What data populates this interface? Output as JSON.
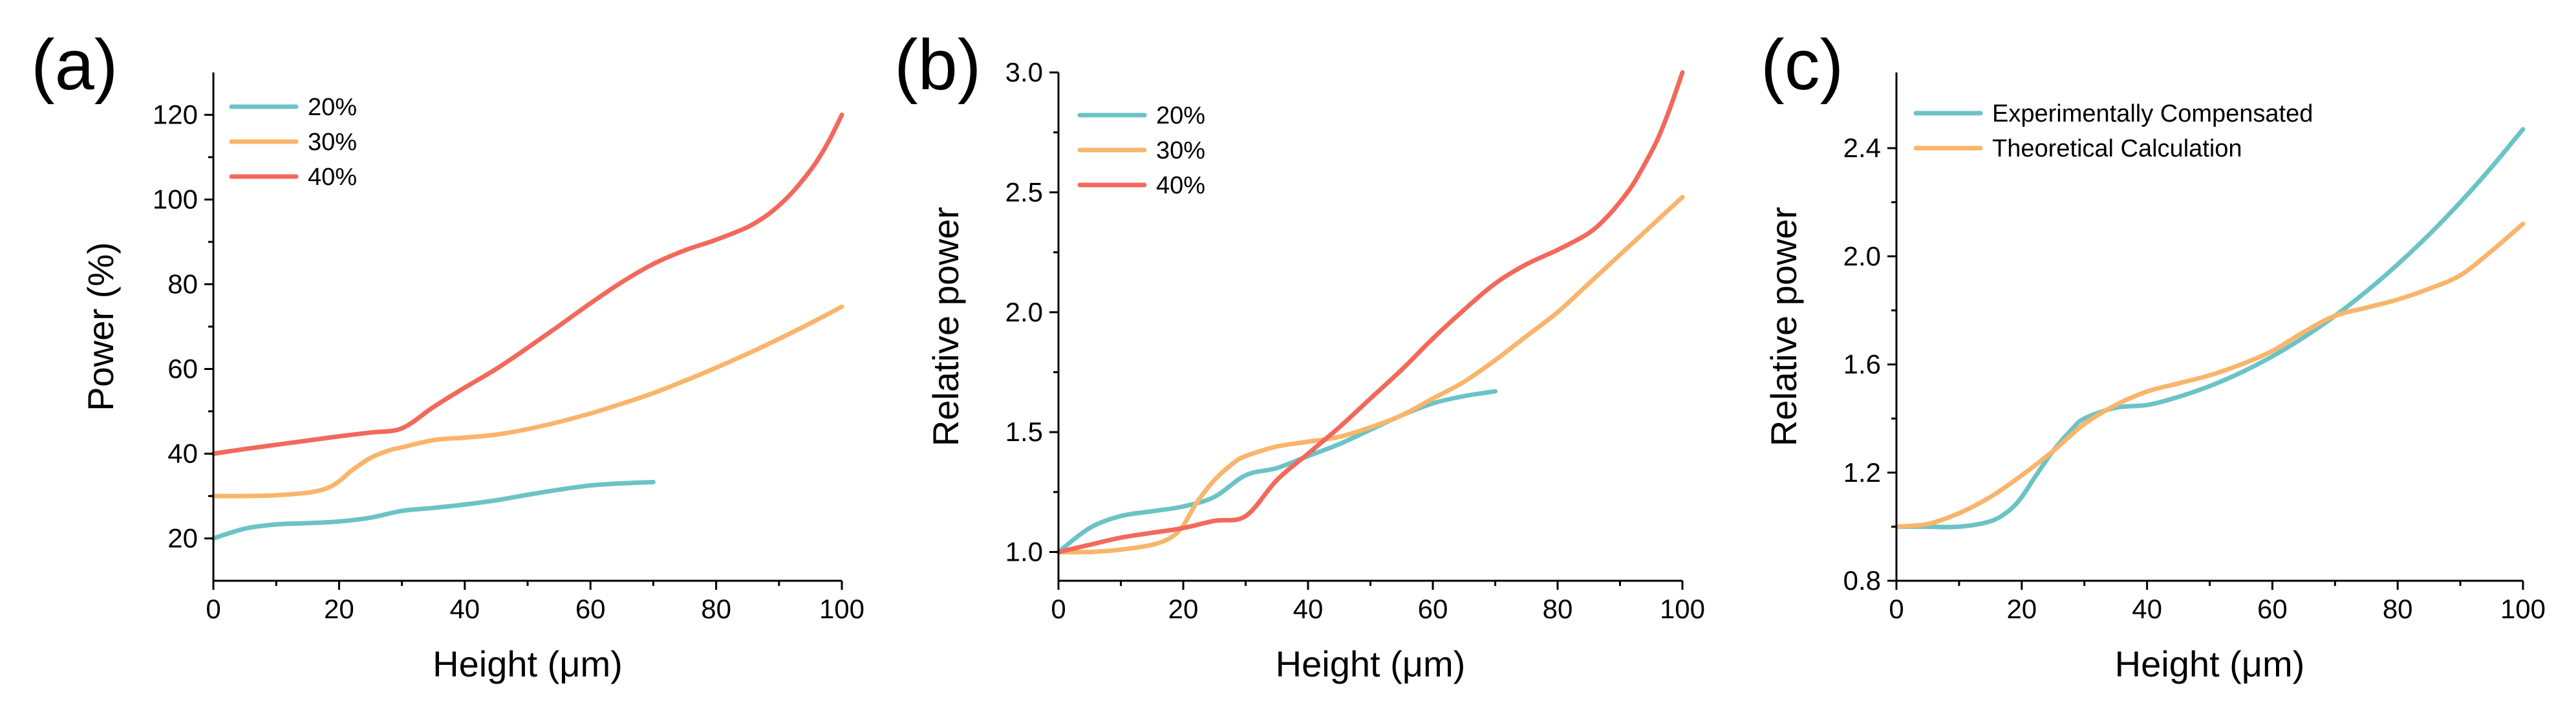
{
  "chart_data": [
    {
      "type": "line",
      "panel_label": "(a)",
      "xlabel": "Height (μm)",
      "ylabel": "Power (%)",
      "xlim": [
        0,
        100
      ],
      "ylim": [
        10,
        130
      ],
      "xticks": [
        0,
        20,
        40,
        60,
        80,
        100
      ],
      "yticks": [
        20,
        40,
        60,
        80,
        100,
        120
      ],
      "grid": false,
      "legend": "top-left",
      "series": [
        {
          "name": "20%",
          "color": "#6cc3c6",
          "x": [
            0,
            5,
            10,
            15,
            20,
            25,
            30,
            35,
            40,
            45,
            50,
            55,
            60,
            65,
            70
          ],
          "y": [
            20,
            22.3,
            23.3,
            23.6,
            24,
            24.9,
            26.5,
            27.2,
            28,
            29,
            30.3,
            31.5,
            32.5,
            33,
            33.3
          ]
        },
        {
          "name": "30%",
          "color": "#f9b56b",
          "x": [
            0,
            5,
            10,
            15,
            18,
            20,
            22,
            25,
            28,
            30,
            35,
            40,
            45,
            50,
            55,
            60,
            65,
            70,
            75,
            80,
            85,
            90,
            95,
            100
          ],
          "y": [
            30,
            30,
            30.2,
            30.8,
            31.8,
            33.5,
            36,
            39,
            40.8,
            41.5,
            43.2,
            43.8,
            44.5,
            45.8,
            47.5,
            49.5,
            51.8,
            54.3,
            57.2,
            60.3,
            63.6,
            67.1,
            70.8,
            74.7
          ]
        },
        {
          "name": "40%",
          "color": "#f2695c",
          "x": [
            0,
            5,
            10,
            15,
            20,
            25,
            30,
            35,
            40,
            45,
            50,
            55,
            60,
            65,
            70,
            75,
            80,
            85,
            88,
            90,
            92,
            94,
            96,
            98,
            100
          ],
          "y": [
            40,
            41.1,
            42.1,
            43.1,
            44.1,
            45,
            46,
            51,
            55.6,
            60,
            65,
            70.2,
            75.5,
            80.5,
            84.8,
            88,
            90.5,
            93.5,
            96.2,
            98.6,
            101.5,
            105,
            109,
            114,
            120
          ]
        }
      ]
    },
    {
      "type": "line",
      "panel_label": "(b)",
      "xlabel": "Height (μm)",
      "ylabel": "Relative power",
      "xlim": [
        0,
        100
      ],
      "ylim": [
        0.88,
        3.0
      ],
      "xticks": [
        0,
        20,
        40,
        60,
        80,
        100
      ],
      "yticks": [
        "1.0",
        "1.5",
        "2.0",
        "2.5",
        "3.0"
      ],
      "grid": false,
      "legend": "top-left",
      "series": [
        {
          "name": "20%",
          "color": "#6cc3c6",
          "x": [
            0,
            5,
            10,
            15,
            20,
            25,
            30,
            35,
            40,
            45,
            50,
            55,
            60,
            65,
            70
          ],
          "y": [
            1.0,
            1.1,
            1.15,
            1.17,
            1.19,
            1.23,
            1.32,
            1.35,
            1.4,
            1.45,
            1.51,
            1.57,
            1.62,
            1.65,
            1.67
          ]
        },
        {
          "name": "30%",
          "color": "#f9b56b",
          "x": [
            0,
            5,
            10,
            15,
            18,
            20,
            22,
            25,
            28,
            30,
            35,
            40,
            45,
            50,
            55,
            60,
            65,
            70,
            75,
            80,
            85,
            90,
            95,
            100
          ],
          "y": [
            1.0,
            1.0,
            1.01,
            1.03,
            1.06,
            1.11,
            1.2,
            1.3,
            1.37,
            1.4,
            1.44,
            1.46,
            1.48,
            1.52,
            1.57,
            1.64,
            1.71,
            1.8,
            1.9,
            2.0,
            2.12,
            2.24,
            2.36,
            2.48
          ]
        },
        {
          "name": "40%",
          "color": "#f2695c",
          "x": [
            0,
            5,
            10,
            15,
            20,
            25,
            30,
            35,
            40,
            45,
            50,
            55,
            60,
            65,
            70,
            75,
            80,
            85,
            88,
            90,
            92,
            94,
            96,
            98,
            100
          ],
          "y": [
            1.0,
            1.03,
            1.06,
            1.08,
            1.1,
            1.13,
            1.15,
            1.3,
            1.41,
            1.52,
            1.64,
            1.76,
            1.89,
            2.01,
            2.12,
            2.2,
            2.26,
            2.33,
            2.4,
            2.46,
            2.53,
            2.62,
            2.72,
            2.85,
            3.0
          ]
        }
      ]
    },
    {
      "type": "line",
      "panel_label": "(c)",
      "xlabel": "Height (μm)",
      "ylabel": "Relative power",
      "xlim": [
        0,
        100
      ],
      "ylim": [
        0.8,
        2.68
      ],
      "xticks": [
        0,
        20,
        40,
        60,
        80,
        100
      ],
      "yticks": [
        "0.8",
        "1.2",
        "1.6",
        "2.0",
        "2.4"
      ],
      "grid": false,
      "legend": "top-left",
      "series": [
        {
          "name": "Experimentally Compensated",
          "color": "#6cc3c6",
          "x": [
            0,
            5,
            10,
            15,
            18,
            20,
            22,
            25,
            28,
            30,
            35,
            40,
            45,
            50,
            55,
            60,
            65,
            70,
            75,
            80,
            85,
            90,
            95,
            100
          ],
          "y": [
            1.0,
            1.0,
            1.0,
            1.02,
            1.06,
            1.11,
            1.18,
            1.28,
            1.36,
            1.4,
            1.44,
            1.45,
            1.48,
            1.52,
            1.57,
            1.63,
            1.7,
            1.78,
            1.87,
            1.97,
            2.08,
            2.2,
            2.33,
            2.47
          ]
        },
        {
          "name": "Theoretical Calculation",
          "color": "#f9b56b",
          "x": [
            0,
            5,
            10,
            15,
            20,
            25,
            30,
            35,
            40,
            45,
            50,
            55,
            60,
            65,
            70,
            75,
            80,
            85,
            90,
            95,
            100
          ],
          "y": [
            1.0,
            1.01,
            1.05,
            1.11,
            1.19,
            1.28,
            1.38,
            1.45,
            1.5,
            1.53,
            1.56,
            1.6,
            1.65,
            1.72,
            1.78,
            1.81,
            1.84,
            1.88,
            1.93,
            2.02,
            2.12
          ]
        }
      ]
    }
  ]
}
